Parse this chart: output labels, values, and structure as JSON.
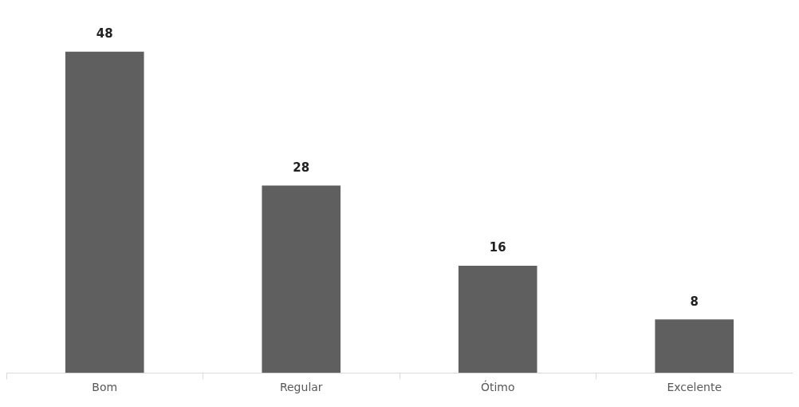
{
  "chart_data": {
    "type": "bar",
    "categories": [
      "Bom",
      "Regular",
      "Ótimo",
      "Excelente"
    ],
    "values": [
      48,
      28,
      16,
      8
    ],
    "color": "#5f5f5f",
    "data_labels": true
  }
}
